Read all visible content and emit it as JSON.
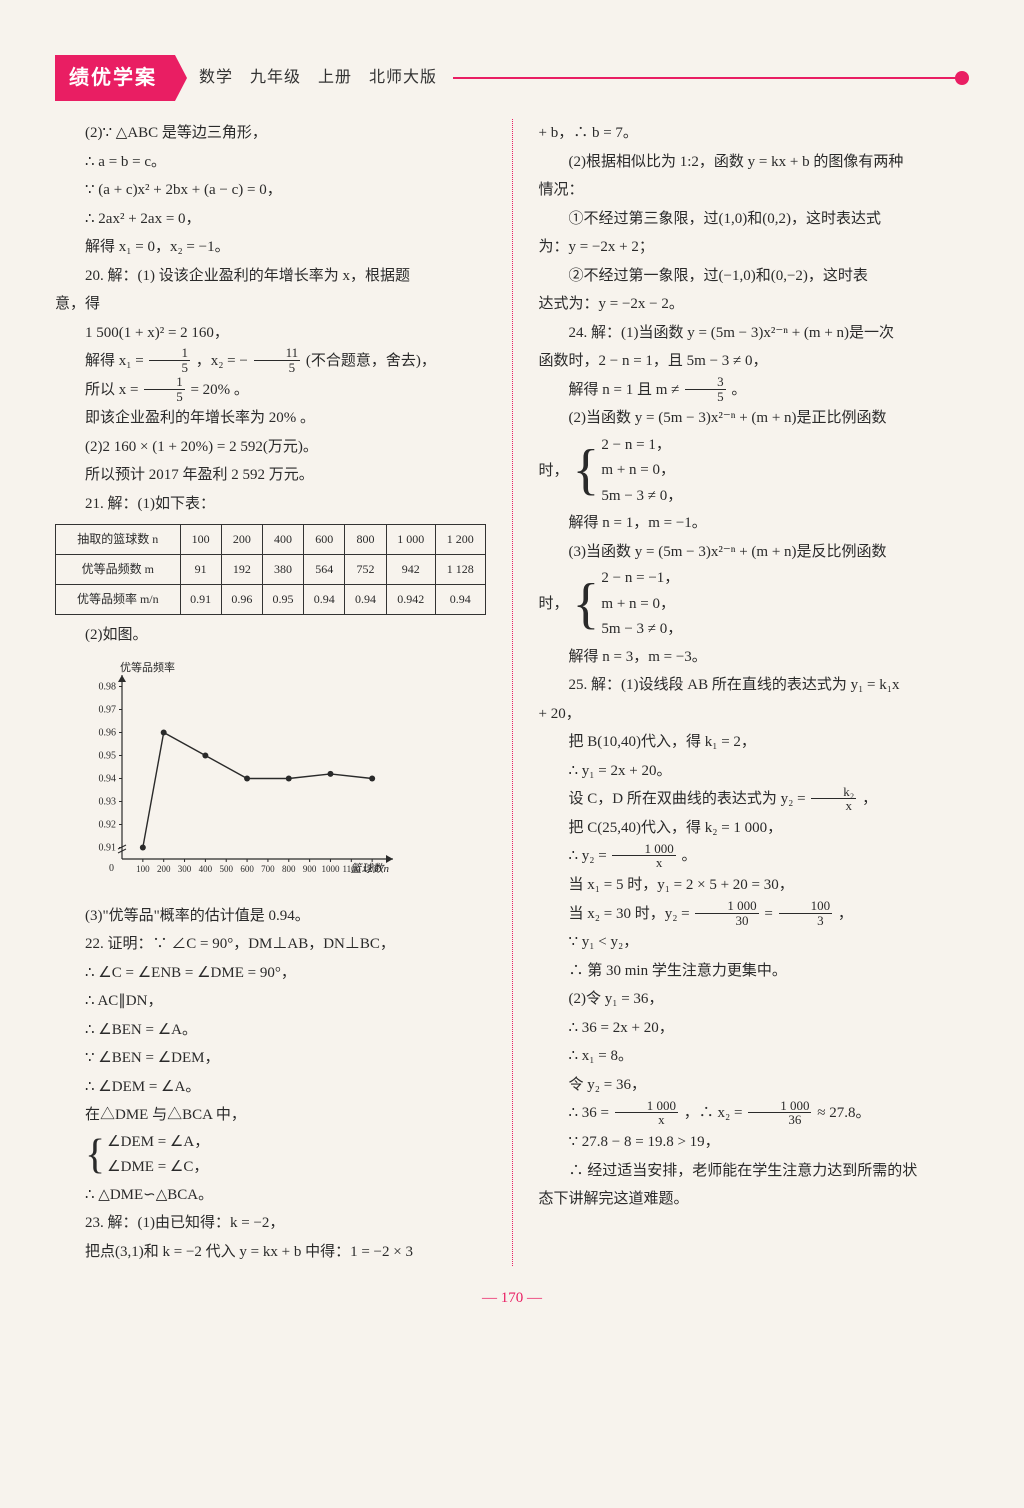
{
  "header": {
    "badge": "绩优学案",
    "meta": "数学　九年级　上册　北师大版"
  },
  "left": {
    "l1": "(2)∵ △ABC 是等边三角形，",
    "l2": "∴ a = b = c。",
    "l3": "∵ (a + c)x² + 2bx + (a − c) = 0，",
    "l4": "∴ 2ax² + 2ax = 0，",
    "l5": "解得 x₁ = 0，x₂ = −1。",
    "l6a": "20. 解：(1) 设该企业盈利的年增长率为 x，根据题",
    "l6b": "意，得",
    "l7": "1 500(1 + x)² = 2 160，",
    "l8a": "解得 x₁ = ",
    "l8b": "，x₂ = − ",
    "l8c": "(不合题意，舍去)，",
    "l9a": "所以 x = ",
    "l9b": " = 20% 。",
    "l10": "即该企业盈利的年增长率为 20% 。",
    "l11": "(2)2 160 × (1 + 20%) = 2 592(万元)。",
    "l12": "所以预计 2017 年盈利 2 592 万元。",
    "l13": "21. 解：(1)如下表：",
    "table": {
      "headers": [
        "抽取的篮球数 n",
        "100",
        "200",
        "400",
        "600",
        "800",
        "1 000",
        "1 200"
      ],
      "row1": [
        "优等品频数 m",
        "91",
        "192",
        "380",
        "564",
        "752",
        "942",
        "1 128"
      ],
      "row2": [
        "优等品频率 m/n",
        "0.91",
        "0.96",
        "0.95",
        "0.94",
        "0.94",
        "0.942",
        "0.94"
      ]
    },
    "l14": "(2)如图。",
    "chart": {
      "ylabel": "优等品频率",
      "xlabel": "篮球数n",
      "xticks": [
        "0",
        "100",
        "200",
        "300",
        "400",
        "500",
        "600",
        "700",
        "800",
        "900",
        "1000",
        "1100",
        "1200"
      ],
      "yticks": [
        "0.91",
        "0.92",
        "0.93",
        "0.94",
        "0.95",
        "0.96",
        "0.97",
        "0.98"
      ],
      "points": [
        {
          "x": 100,
          "y": 0.91
        },
        {
          "x": 200,
          "y": 0.96
        },
        {
          "x": 400,
          "y": 0.95
        },
        {
          "x": 600,
          "y": 0.94
        },
        {
          "x": 800,
          "y": 0.94
        },
        {
          "x": 1000,
          "y": 0.942
        },
        {
          "x": 1200,
          "y": 0.94
        }
      ],
      "axis_color": "#2a2a2a",
      "point_color": "#2a2a2a",
      "line_color": "#2a2a2a",
      "fontsize": 10
    },
    "l15": "(3)\"优等品\"概率的估计值是 0.94。",
    "l16": "22. 证明：∵ ∠C = 90°，DM⊥AB，DN⊥BC，",
    "l17": "∴ ∠C = ∠ENB = ∠DME = 90°，",
    "l18": "∴ AC∥DN，",
    "l19": "∴ ∠BEN = ∠A。",
    "l20": "∵ ∠BEN = ∠DEM，",
    "l21": "∴ ∠DEM = ∠A。",
    "l22": "在△DME 与△BCA 中，",
    "brace1a": "∠DEM = ∠A，",
    "brace1b": "∠DME = ∠C，",
    "l24": "∴ △DME∽△BCA。",
    "l25": "23. 解：(1)由已知得：k = −2，",
    "l26": "把点(3,1)和 k = −2 代入 y = kx + b 中得：1 = −2 × 3"
  },
  "right": {
    "r1": "+ b，∴ b = 7。",
    "r2": "(2)根据相似比为 1:2，函数 y = kx + b 的图像有两种",
    "r2b": "情况：",
    "r3": "①不经过第三象限，过(1,0)和(0,2)，这时表达式",
    "r3b": "为：y = −2x + 2；",
    "r4": "②不经过第一象限，过(−1,0)和(0,−2)，这时表",
    "r4b": "达式为：y = −2x − 2。",
    "r5": "24. 解：(1)当函数 y = (5m − 3)x²⁻ⁿ + (m + n)是一次",
    "r5b": "函数时，2 − n = 1，且 5m − 3 ≠ 0，",
    "r6a": "解得 n = 1 且 m ≠ ",
    "r6b": "。",
    "r7": "(2)当函数 y = (5m − 3)x²⁻ⁿ + (m + n)是正比例函数",
    "r7lead": "时，",
    "brace2a": "2 − n = 1，",
    "brace2b": "m + n = 0，",
    "brace2c": "5m − 3 ≠ 0，",
    "r9": "解得 n = 1，m = −1。",
    "r10": "(3)当函数 y = (5m − 3)x²⁻ⁿ + (m + n)是反比例函数",
    "r10lead": "时，",
    "brace3a": "2 − n = −1，",
    "brace3b": "m + n = 0，",
    "brace3c": "5m − 3 ≠ 0，",
    "r12": "解得 n = 3，m = −3。",
    "r13": "25. 解：(1)设线段 AB 所在直线的表达式为 y₁ = k₁x",
    "r13b": "+ 20，",
    "r14": "把 B(10,40)代入，得 k₁ = 2，",
    "r15": "∴ y₁ = 2x + 20。",
    "r16a": "设 C，D 所在双曲线的表达式为 y₂ = ",
    "r16b": "，",
    "r17": "把 C(25,40)代入，得 k₂ = 1 000，",
    "r18a": "∴ y₂ = ",
    "r18b": " 。",
    "r19": "当 x₁ = 5 时，y₁ = 2 × 5 + 20 = 30，",
    "r20a": "当 x₂ = 30 时，y₂ = ",
    "r20b": " = ",
    "r20c": "，",
    "r21": "∵ y₁ < y₂，",
    "r22": "∴ 第 30 min 学生注意力更集中。",
    "r23": "(2)令 y₁ = 36，",
    "r24": "∴ 36 = 2x + 20，",
    "r25": "∴ x₁ = 8。",
    "r26": "令 y₂ = 36，",
    "r27a": "∴ 36 = ",
    "r27b": "，∴ x₂ = ",
    "r27c": " ≈ 27.8。",
    "r28": "∵ 27.8 − 8 = 19.8 > 19，",
    "r29": "∴ 经过适当安排，老师能在学生注意力达到所需的状",
    "r29b": "态下讲解完这道难题。"
  },
  "fracs": {
    "one_fifth": {
      "n": "1",
      "d": "5"
    },
    "eleven_fifths": {
      "n": "11",
      "d": "5"
    },
    "three_fifths": {
      "n": "3",
      "d": "5"
    },
    "k2_x": {
      "n": "k₂",
      "d": "x"
    },
    "thousand_x": {
      "n": "1 000",
      "d": "x"
    },
    "thousand_30": {
      "n": "1 000",
      "d": "30"
    },
    "hundred_3": {
      "n": "100",
      "d": "3"
    },
    "thousand_36": {
      "n": "1 000",
      "d": "36"
    }
  },
  "pagenum": "— 170 —"
}
